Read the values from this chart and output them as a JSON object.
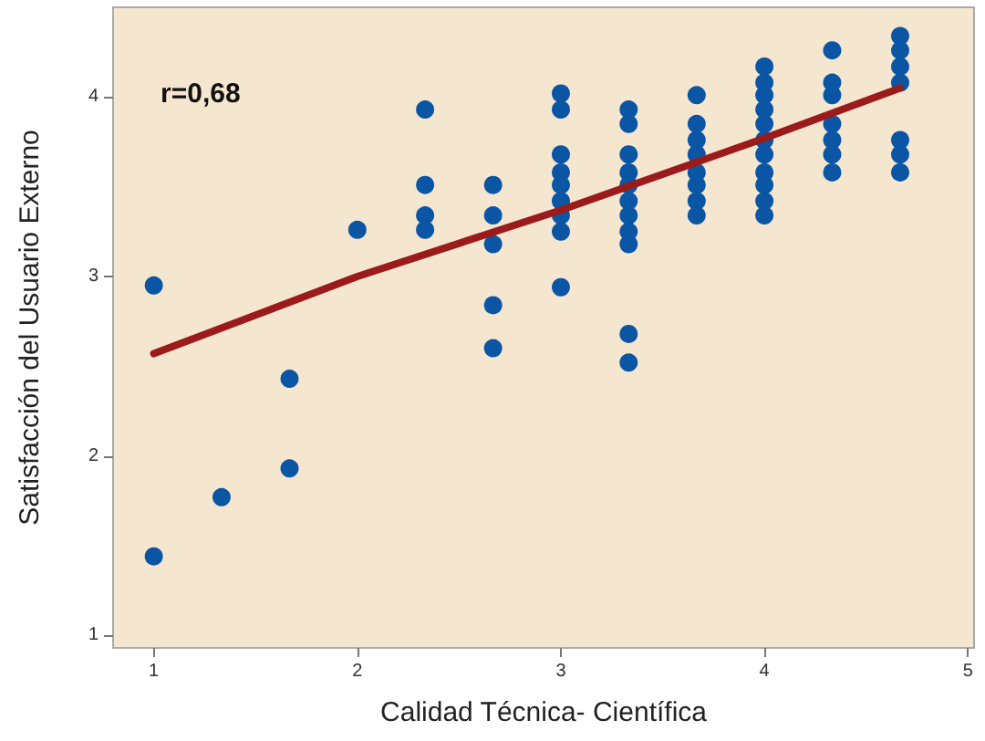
{
  "chart_data": {
    "type": "scatter",
    "xlabel": "Calidad Técnica- Científica",
    "ylabel": "Satisfacción del Usuario Externo",
    "annotations": [
      "r=0,68"
    ],
    "xlim": [
      0.8,
      5.03
    ],
    "ylim": [
      0.93,
      4.5
    ],
    "xticks": [
      1,
      2,
      3,
      4,
      5
    ],
    "yticks": [
      1,
      2,
      3,
      4
    ],
    "grid": false,
    "marker": "circle",
    "series": [
      {
        "color": "#0a56a4",
        "x": [
          1,
          1,
          1.333,
          1.667,
          1.667,
          2,
          2.333,
          2.333,
          2.333,
          2.333,
          2.667,
          2.667,
          2.667,
          2.667,
          2.667,
          3,
          3,
          3,
          3,
          3,
          3,
          3,
          3,
          3,
          3.333,
          3.333,
          3.333,
          3.333,
          3.333,
          3.333,
          3.333,
          3.333,
          3.333,
          3.333,
          3.333,
          3.667,
          3.667,
          3.667,
          3.667,
          3.667,
          3.667,
          3.667,
          3.667,
          4,
          4,
          4,
          4,
          4,
          4,
          4,
          4,
          4,
          4,
          4,
          4.333,
          4.333,
          4.333,
          4.333,
          4.333,
          4.333,
          4.333,
          4.667,
          4.667,
          4.667,
          4.667,
          4.667,
          4.667,
          4.667
        ],
        "values": [
          2.95,
          1.44,
          1.77,
          2.43,
          1.93,
          3.26,
          3.93,
          3.51,
          3.34,
          3.26,
          3.51,
          3.34,
          3.18,
          2.84,
          2.6,
          4.02,
          3.93,
          3.68,
          3.58,
          3.51,
          3.42,
          3.34,
          3.25,
          2.94,
          3.93,
          3.85,
          3.68,
          3.58,
          3.51,
          3.42,
          3.34,
          3.25,
          3.18,
          2.68,
          2.52,
          4.01,
          3.85,
          3.76,
          3.68,
          3.58,
          3.51,
          3.42,
          3.34,
          4.17,
          4.08,
          4.01,
          3.93,
          3.85,
          3.76,
          3.68,
          3.58,
          3.51,
          3.42,
          3.34,
          4.26,
          4.08,
          4.01,
          3.85,
          3.76,
          3.68,
          3.58,
          4.34,
          4.26,
          4.17,
          4.08,
          3.76,
          3.68,
          3.58
        ]
      },
      {
        "type": "line",
        "marker": "none",
        "color": "#9b1a1a",
        "x": [
          1,
          2,
          3,
          4,
          4.667
        ],
        "values": [
          2.57,
          3.0,
          3.37,
          3.77,
          4.05
        ]
      }
    ]
  }
}
